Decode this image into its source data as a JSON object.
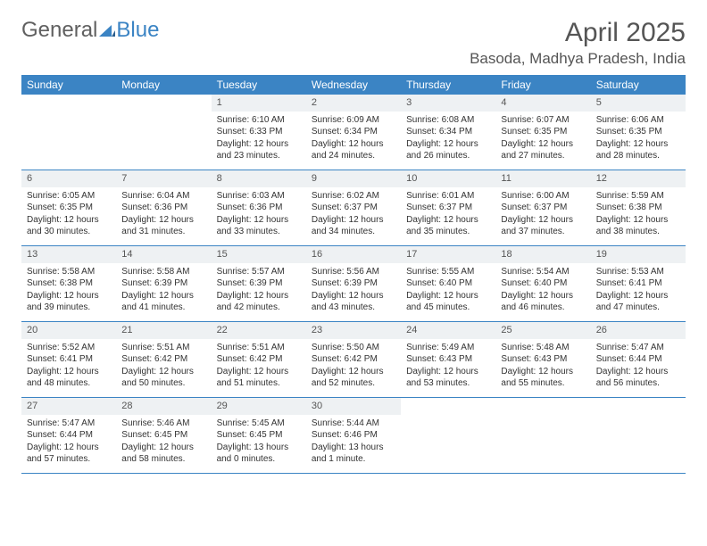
{
  "logo": {
    "word1": "General",
    "word2": "Blue"
  },
  "title": "April 2025",
  "location": "Basoda, Madhya Pradesh, India",
  "colors": {
    "header_bg": "#3b84c4",
    "daynum_bg": "#eef1f3",
    "text": "#333333",
    "title_text": "#555555"
  },
  "day_names": [
    "Sunday",
    "Monday",
    "Tuesday",
    "Wednesday",
    "Thursday",
    "Friday",
    "Saturday"
  ],
  "grid": {
    "first_weekday_index": 2,
    "days_in_month": 30
  },
  "days": {
    "1": {
      "sunrise": "6:10 AM",
      "sunset": "6:33 PM",
      "daylight": "12 hours and 23 minutes."
    },
    "2": {
      "sunrise": "6:09 AM",
      "sunset": "6:34 PM",
      "daylight": "12 hours and 24 minutes."
    },
    "3": {
      "sunrise": "6:08 AM",
      "sunset": "6:34 PM",
      "daylight": "12 hours and 26 minutes."
    },
    "4": {
      "sunrise": "6:07 AM",
      "sunset": "6:35 PM",
      "daylight": "12 hours and 27 minutes."
    },
    "5": {
      "sunrise": "6:06 AM",
      "sunset": "6:35 PM",
      "daylight": "12 hours and 28 minutes."
    },
    "6": {
      "sunrise": "6:05 AM",
      "sunset": "6:35 PM",
      "daylight": "12 hours and 30 minutes."
    },
    "7": {
      "sunrise": "6:04 AM",
      "sunset": "6:36 PM",
      "daylight": "12 hours and 31 minutes."
    },
    "8": {
      "sunrise": "6:03 AM",
      "sunset": "6:36 PM",
      "daylight": "12 hours and 33 minutes."
    },
    "9": {
      "sunrise": "6:02 AM",
      "sunset": "6:37 PM",
      "daylight": "12 hours and 34 minutes."
    },
    "10": {
      "sunrise": "6:01 AM",
      "sunset": "6:37 PM",
      "daylight": "12 hours and 35 minutes."
    },
    "11": {
      "sunrise": "6:00 AM",
      "sunset": "6:37 PM",
      "daylight": "12 hours and 37 minutes."
    },
    "12": {
      "sunrise": "5:59 AM",
      "sunset": "6:38 PM",
      "daylight": "12 hours and 38 minutes."
    },
    "13": {
      "sunrise": "5:58 AM",
      "sunset": "6:38 PM",
      "daylight": "12 hours and 39 minutes."
    },
    "14": {
      "sunrise": "5:58 AM",
      "sunset": "6:39 PM",
      "daylight": "12 hours and 41 minutes."
    },
    "15": {
      "sunrise": "5:57 AM",
      "sunset": "6:39 PM",
      "daylight": "12 hours and 42 minutes."
    },
    "16": {
      "sunrise": "5:56 AM",
      "sunset": "6:39 PM",
      "daylight": "12 hours and 43 minutes."
    },
    "17": {
      "sunrise": "5:55 AM",
      "sunset": "6:40 PM",
      "daylight": "12 hours and 45 minutes."
    },
    "18": {
      "sunrise": "5:54 AM",
      "sunset": "6:40 PM",
      "daylight": "12 hours and 46 minutes."
    },
    "19": {
      "sunrise": "5:53 AM",
      "sunset": "6:41 PM",
      "daylight": "12 hours and 47 minutes."
    },
    "20": {
      "sunrise": "5:52 AM",
      "sunset": "6:41 PM",
      "daylight": "12 hours and 48 minutes."
    },
    "21": {
      "sunrise": "5:51 AM",
      "sunset": "6:42 PM",
      "daylight": "12 hours and 50 minutes."
    },
    "22": {
      "sunrise": "5:51 AM",
      "sunset": "6:42 PM",
      "daylight": "12 hours and 51 minutes."
    },
    "23": {
      "sunrise": "5:50 AM",
      "sunset": "6:42 PM",
      "daylight": "12 hours and 52 minutes."
    },
    "24": {
      "sunrise": "5:49 AM",
      "sunset": "6:43 PM",
      "daylight": "12 hours and 53 minutes."
    },
    "25": {
      "sunrise": "5:48 AM",
      "sunset": "6:43 PM",
      "daylight": "12 hours and 55 minutes."
    },
    "26": {
      "sunrise": "5:47 AM",
      "sunset": "6:44 PM",
      "daylight": "12 hours and 56 minutes."
    },
    "27": {
      "sunrise": "5:47 AM",
      "sunset": "6:44 PM",
      "daylight": "12 hours and 57 minutes."
    },
    "28": {
      "sunrise": "5:46 AM",
      "sunset": "6:45 PM",
      "daylight": "12 hours and 58 minutes."
    },
    "29": {
      "sunrise": "5:45 AM",
      "sunset": "6:45 PM",
      "daylight": "13 hours and 0 minutes."
    },
    "30": {
      "sunrise": "5:44 AM",
      "sunset": "6:46 PM",
      "daylight": "13 hours and 1 minute."
    }
  },
  "labels": {
    "sunrise_prefix": "Sunrise: ",
    "sunset_prefix": "Sunset: ",
    "daylight_prefix": "Daylight: "
  }
}
